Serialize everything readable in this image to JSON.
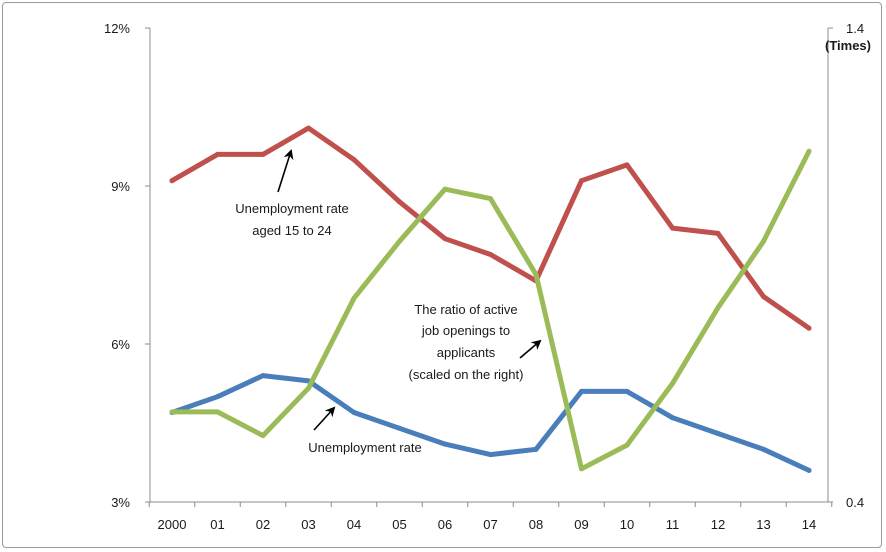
{
  "chart_data": {
    "type": "line",
    "title": "",
    "x": [
      "2000",
      "01",
      "02",
      "03",
      "04",
      "05",
      "06",
      "07",
      "08",
      "09",
      "10",
      "11",
      "12",
      "13",
      "14"
    ],
    "y_left": {
      "ticks": [
        "3%",
        "6%",
        "9%",
        "12%"
      ],
      "range": [
        3,
        12
      ],
      "unit_percent": true
    },
    "y_right": {
      "ticks": [
        "0.4",
        "1.4"
      ],
      "unit_label": "(Times)",
      "range": [
        0.4,
        1.4
      ]
    },
    "series": [
      {
        "key": "youth",
        "axis": "left",
        "color": "#c0504d",
        "values": [
          9.1,
          9.6,
          9.6,
          10.1,
          9.5,
          8.7,
          8.0,
          7.7,
          7.2,
          9.1,
          9.4,
          8.2,
          8.1,
          6.9,
          6.3
        ]
      },
      {
        "key": "unemployment",
        "axis": "left",
        "color": "#4a7ebb",
        "values": [
          4.7,
          5.0,
          5.4,
          5.3,
          4.7,
          4.4,
          4.1,
          3.9,
          4.0,
          5.1,
          5.1,
          4.6,
          4.3,
          4.0,
          3.6
        ]
      },
      {
        "key": "ratio",
        "axis": "right",
        "color": "#9bbb59",
        "values": [
          0.59,
          0.59,
          0.54,
          0.64,
          0.83,
          0.95,
          1.06,
          1.04,
          0.88,
          0.47,
          0.52,
          0.65,
          0.81,
          0.95,
          1.14
        ]
      }
    ],
    "annotations": {
      "youth": [
        "Unemployment rate",
        "aged 15 to 24"
      ],
      "ratio": [
        "The ratio of active",
        "job openings to",
        "applicants",
        "(scaled on the right)"
      ],
      "unemployment": [
        "Unemployment rate"
      ]
    },
    "legend": "none",
    "grid": false
  }
}
